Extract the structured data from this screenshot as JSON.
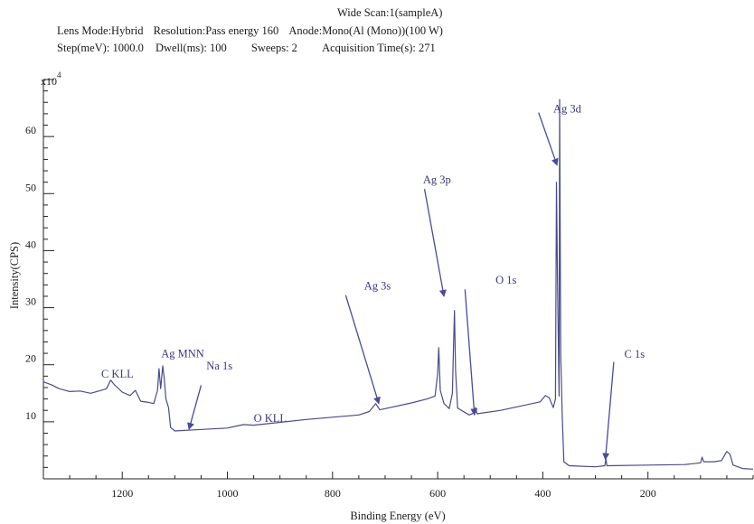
{
  "header": {
    "title": "Wide Scan:1(sampleA)",
    "line1": [
      "Lens Mode:Hybrid",
      "Resolution:Pass energy 160",
      "Anode:Mono(Al (Mono))(100 W)"
    ],
    "line2": [
      "Step(meV): 1000.0",
      "Dwell(ms): 100",
      "Sweeps: 2",
      "Acquisition Time(s): 271"
    ]
  },
  "chart_data": {
    "type": "line",
    "title": "Wide Scan:1(sampleA)",
    "xlabel": "Binding Energy (eV)",
    "ylabel": "Intensity(CPS)",
    "y_multiplier_label": "x10",
    "y_multiplier_exp": "4",
    "xlim": [
      1350,
      0
    ],
    "ylim": [
      0,
      70
    ],
    "x_ticks": [
      1200,
      1000,
      800,
      600,
      400,
      200
    ],
    "y_ticks": [
      10,
      20,
      30,
      40,
      50,
      60
    ],
    "grid": false,
    "series": [
      {
        "points": [
          [
            1350,
            17
          ],
          [
            1335,
            16.5
          ],
          [
            1320,
            15.8
          ],
          [
            1300,
            15.3
          ],
          [
            1280,
            15.4
          ],
          [
            1260,
            15.0
          ],
          [
            1240,
            15.5
          ],
          [
            1230,
            15.8
          ],
          [
            1222,
            17.3
          ],
          [
            1215,
            16.5
          ],
          [
            1200,
            15.2
          ],
          [
            1185,
            14.6
          ],
          [
            1175,
            15.5
          ],
          [
            1165,
            13.6
          ],
          [
            1150,
            13.4
          ],
          [
            1140,
            13.2
          ],
          [
            1133,
            15.5
          ],
          [
            1130,
            19.3
          ],
          [
            1127,
            15.8
          ],
          [
            1123,
            19.8
          ],
          [
            1120,
            17.5
          ],
          [
            1117,
            14.0
          ],
          [
            1112,
            12.5
          ],
          [
            1108,
            9.0
          ],
          [
            1100,
            8.4
          ],
          [
            1060,
            8.6
          ],
          [
            1000,
            8.9
          ],
          [
            970,
            9.5
          ],
          [
            950,
            9.4
          ],
          [
            900,
            9.9
          ],
          [
            850,
            10.4
          ],
          [
            800,
            10.8
          ],
          [
            750,
            11.2
          ],
          [
            730,
            11.8
          ],
          [
            718,
            13.2
          ],
          [
            710,
            12.1
          ],
          [
            700,
            12.3
          ],
          [
            650,
            13.3
          ],
          [
            620,
            14.0
          ],
          [
            605,
            14.5
          ],
          [
            600,
            18.5
          ],
          [
            598,
            23.0
          ],
          [
            595,
            15.5
          ],
          [
            588,
            13.2
          ],
          [
            578,
            12.3
          ],
          [
            572,
            15.0
          ],
          [
            570,
            23.0
          ],
          [
            568,
            29.5
          ],
          [
            566,
            19.0
          ],
          [
            562,
            12.4
          ],
          [
            540,
            11.2
          ],
          [
            530,
            11.6
          ],
          [
            528,
            12.5
          ],
          [
            525,
            11.4
          ],
          [
            480,
            12.0
          ],
          [
            440,
            12.8
          ],
          [
            405,
            13.5
          ],
          [
            395,
            14.6
          ],
          [
            388,
            14.2
          ],
          [
            380,
            12.5
          ],
          [
            376,
            14.0
          ],
          [
            374,
            52.0
          ],
          [
            372,
            34.0
          ],
          [
            369,
            14.5
          ],
          [
            368,
            66.5
          ],
          [
            366,
            22.0
          ],
          [
            363,
            11.0
          ],
          [
            360,
            3.0
          ],
          [
            350,
            2.3
          ],
          [
            300,
            2.1
          ],
          [
            282,
            2.3
          ],
          [
            280,
            3.5
          ],
          [
            278,
            2.3
          ],
          [
            200,
            2.4
          ],
          [
            130,
            2.5
          ],
          [
            100,
            2.8
          ],
          [
            97,
            3.8
          ],
          [
            94,
            3.0
          ],
          [
            75,
            3.0
          ],
          [
            60,
            3.2
          ],
          [
            50,
            4.8
          ],
          [
            44,
            4.3
          ],
          [
            38,
            2.4
          ],
          [
            20,
            1.8
          ],
          [
            0,
            1.7
          ]
        ]
      }
    ],
    "annotations": [
      {
        "text": "C KLL",
        "label_x": 1240,
        "label_y": 17.7
      },
      {
        "text": "Ag MNN",
        "label_x": 1126,
        "label_y": 21.3
      },
      {
        "text": "Na 1s",
        "label_x": 1040,
        "label_y": 19.2,
        "arrow_from": [
          1050,
          16.4
        ],
        "arrow_to": [
          1073,
          8.7
        ]
      },
      {
        "text": "O KLL",
        "label_x": 950,
        "label_y": 10.0
      },
      {
        "text": "Ag 3s",
        "label_x": 740,
        "label_y": 33.2,
        "arrow_from": [
          775,
          32.2
        ],
        "arrow_to": [
          712,
          13.2
        ]
      },
      {
        "text": "Ag 3p",
        "label_x": 628,
        "label_y": 51.8,
        "arrow_from": [
          625,
          50.8
        ],
        "arrow_to": [
          588,
          32.0
        ]
      },
      {
        "text": "O 1s",
        "label_x": 490,
        "label_y": 34.2,
        "arrow_from": [
          548,
          33.2
        ],
        "arrow_to": [
          530,
          11.2
        ]
      },
      {
        "text": "Ag 3d",
        "label_x": 380,
        "label_y": 64.2,
        "arrow_from": [
          408,
          64.2
        ],
        "arrow_to": [
          373,
          55.0
        ]
      },
      {
        "text": "C 1s",
        "label_x": 245,
        "label_y": 21.2,
        "arrow_from": [
          265,
          20.5
        ],
        "arrow_to": [
          281,
          3.4
        ]
      }
    ],
    "colors": {
      "line": "#4a4a8a",
      "arrow": "#4a4a9a",
      "label": "#3a3a7a"
    }
  }
}
